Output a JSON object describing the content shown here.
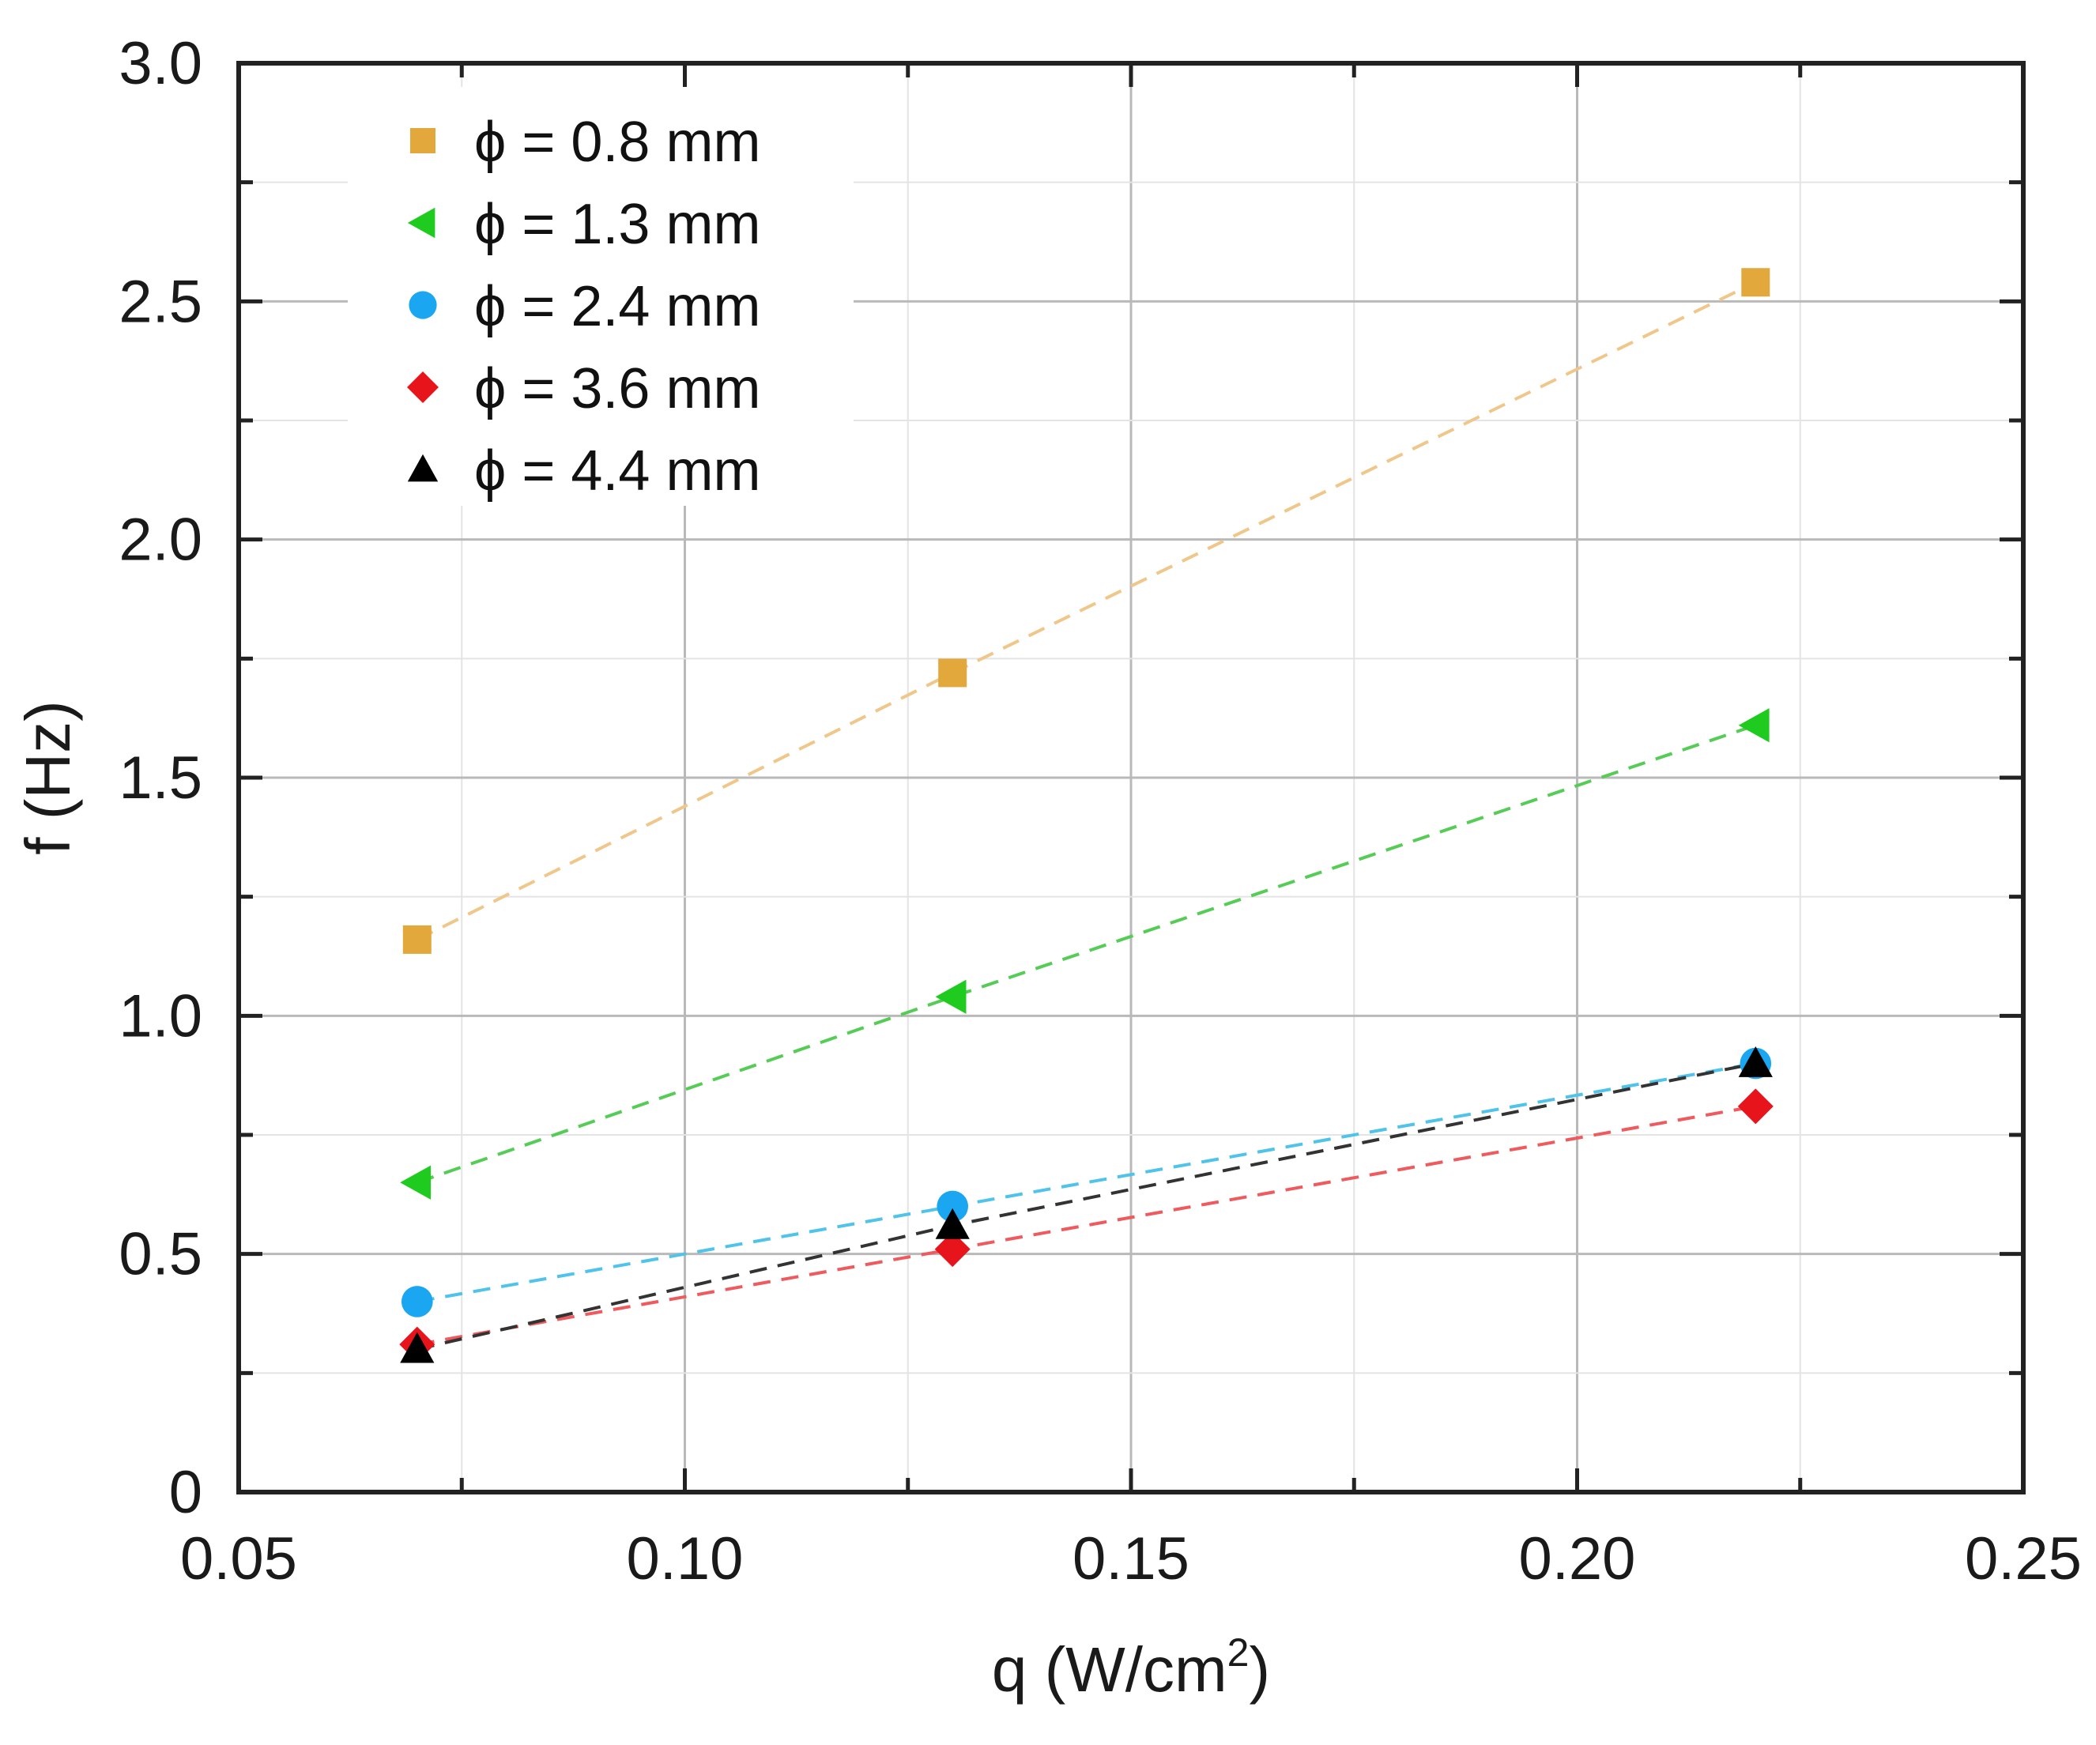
{
  "chart_data": {
    "type": "scatter",
    "title": "",
    "xlabel": "q (W/cm",
    "xlabel_sup": "2",
    "xlabel_end": ")",
    "ylabel": "f (Hz)",
    "xlim": [
      0.05,
      0.25
    ],
    "ylim": [
      0,
      3.0
    ],
    "xticks": [
      0.05,
      0.1,
      0.15,
      0.2,
      0.25
    ],
    "xtick_labels": [
      "0.05",
      "0.10",
      "0.15",
      "0.20",
      "0.25"
    ],
    "yticks": [
      0,
      0.5,
      1.0,
      1.5,
      2.0,
      2.5,
      3.0
    ],
    "ytick_labels": [
      "0",
      "0.5",
      "1.0",
      "1.5",
      "2.0",
      "2.5",
      "3.0"
    ],
    "grid": true,
    "legend_position": "top-left",
    "x": [
      0.07,
      0.13,
      0.22
    ],
    "series": [
      {
        "name": "ϕ = 0.8 mm",
        "marker": "square",
        "color": "#e2a83c",
        "line_color": "#efc78a",
        "values": [
          1.16,
          1.72,
          2.54
        ]
      },
      {
        "name": "ϕ = 1.3 mm",
        "marker": "triangle-left",
        "color": "#1ecb1e",
        "line_color": "#55cc55",
        "values": [
          0.65,
          1.04,
          1.61
        ]
      },
      {
        "name": "ϕ = 2.4 mm",
        "marker": "circle",
        "color": "#1aa6f0",
        "line_color": "#4fc3ea",
        "values": [
          0.4,
          0.6,
          0.9
        ]
      },
      {
        "name": "ϕ = 3.6 mm",
        "marker": "diamond",
        "color": "#e8141c",
        "line_color": "#ee5a5e",
        "values": [
          0.31,
          0.51,
          0.81
        ]
      },
      {
        "name": "ϕ = 4.4 mm",
        "marker": "triangle-up",
        "color": "#000000",
        "line_color": "#333333",
        "values": [
          0.3,
          0.56,
          0.9
        ]
      }
    ]
  }
}
